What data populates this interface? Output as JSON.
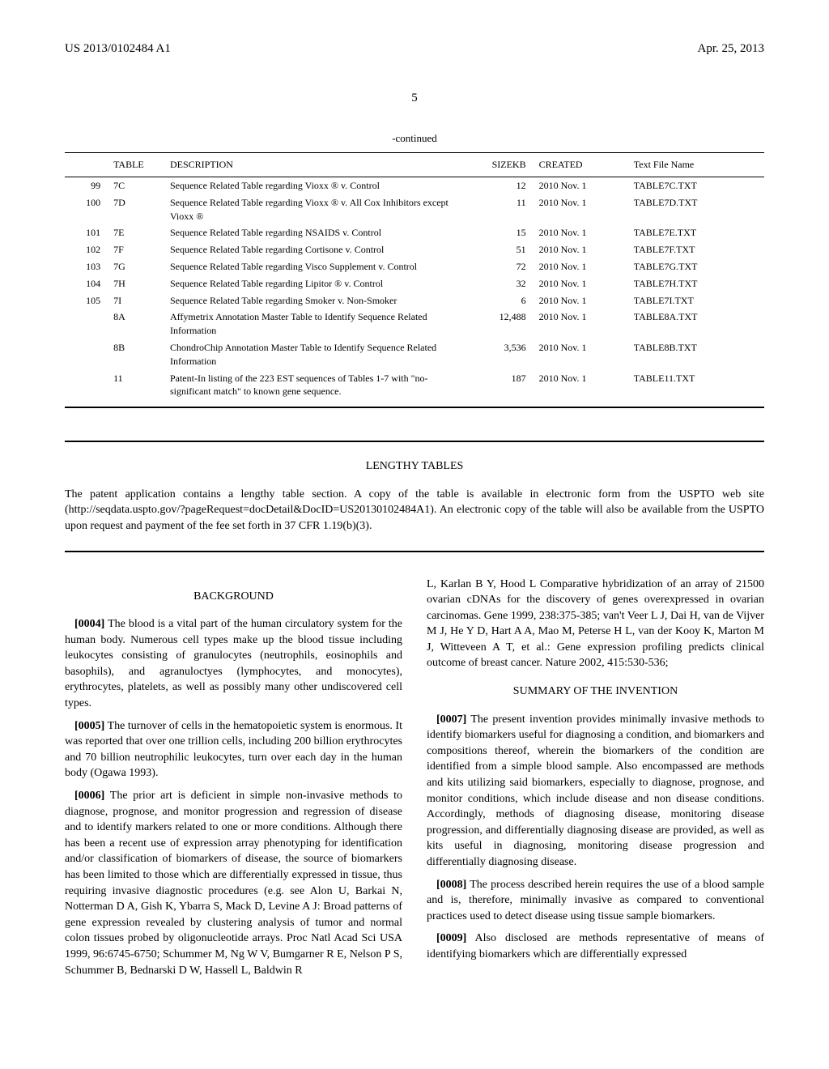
{
  "header": {
    "patent_number": "US 2013/0102484 A1",
    "date": "Apr. 25, 2013"
  },
  "page_number": "5",
  "table": {
    "continued_label": "-continued",
    "columns": [
      "",
      "TABLE",
      "DESCRIPTION",
      "SIZEKB",
      "CREATED",
      "Text File Name"
    ],
    "rows": [
      [
        "99",
        "7C",
        "Sequence Related Table regarding Vioxx ® v. Control",
        "12",
        "2010 Nov. 1",
        "TABLE7C.TXT"
      ],
      [
        "100",
        "7D",
        "Sequence Related Table regarding Vioxx ® v. All Cox Inhibitors except Vioxx ®",
        "11",
        "2010 Nov. 1",
        "TABLE7D.TXT"
      ],
      [
        "101",
        "7E",
        "Sequence Related Table regarding NSAIDS v. Control",
        "15",
        "2010 Nov. 1",
        "TABLE7E.TXT"
      ],
      [
        "102",
        "7F",
        "Sequence Related Table regarding Cortisone v. Control",
        "51",
        "2010 Nov. 1",
        "TABLE7F.TXT"
      ],
      [
        "103",
        "7G",
        "Sequence Related Table regarding Visco Supplement v. Control",
        "72",
        "2010 Nov. 1",
        "TABLE7G.TXT"
      ],
      [
        "104",
        "7H",
        "Sequence Related Table regarding Lipitor ® v. Control",
        "32",
        "2010 Nov. 1",
        "TABLE7H.TXT"
      ],
      [
        "105",
        "7I",
        "Sequence Related Table regarding Smoker v. Non-Smoker",
        "6",
        "2010 Nov. 1",
        "TABLE7I.TXT"
      ],
      [
        "",
        "8A",
        "Affymetrix Annotation Master Table to Identify Sequence Related Information",
        "12,488",
        "2010 Nov. 1",
        "TABLE8A.TXT"
      ],
      [
        "",
        "8B",
        "ChondroChip Annotation Master Table to Identify Sequence Related Information",
        "3,536",
        "2010 Nov. 1",
        "TABLE8B.TXT"
      ],
      [
        "",
        "11",
        "Patent-In listing of the 223 EST sequences of Tables 1-7 with \"no-significant match\" to known gene sequence.",
        "187",
        "2010 Nov. 1",
        "TABLE11.TXT"
      ]
    ],
    "col_widths": [
      "40px",
      "50px",
      "280px",
      "70px",
      "90px",
      "130px"
    ]
  },
  "lengthy_tables": {
    "title": "LENGTHY TABLES",
    "text": "The patent application contains a lengthy table section. A copy of the table is available in electronic form from the USPTO web site (http://seqdata.uspto.gov/?pageRequest=docDetail&DocID=US20130102484A1). An electronic copy of the table will also be available from the USPTO upon request and payment of the fee set forth in 37 CFR 1.19(b)(3)."
  },
  "background": {
    "heading": "BACKGROUND",
    "paragraphs": [
      {
        "num": "[0004]",
        "text": "The blood is a vital part of the human circulatory system for the human body. Numerous cell types make up the blood tissue including leukocytes consisting of granulocytes (neutrophils, eosinophils and basophils), and agranuloctyes (lymphocytes, and monocytes), erythrocytes, platelets, as well as possibly many other undiscovered cell types."
      },
      {
        "num": "[0005]",
        "text": "The turnover of cells in the hematopoietic system is enormous. It was reported that over one trillion cells, including 200 billion erythrocytes and 70 billion neutrophilic leukocytes, turn over each day in the human body (Ogawa 1993)."
      },
      {
        "num": "[0006]",
        "text": "The prior art is deficient in simple non-invasive methods to diagnose, prognose, and monitor progression and regression of disease and to identify markers related to one or more conditions. Although there has been a recent use of expression array phenotyping for identification and/or classification of biomarkers of disease, the source of biomarkers has been limited to those which are differentially expressed in tissue, thus requiring invasive diagnostic procedures (e.g. see Alon U, Barkai N, Notterman D A, Gish K, Ybarra S, Mack D, Levine A J: Broad patterns of gene expression revealed by clustering analysis of tumor and normal colon tissues probed by oligonucleotide arrays. Proc Natl Acad Sci USA 1999, 96:6745-6750; Schummer M, Ng W V, Bumgarner R E, Nelson P S, Schummer B, Bednarski D W, Hassell L, Baldwin R"
      }
    ]
  },
  "col2_continuation": "L, Karlan B Y, Hood L Comparative hybridization of an array of 21500 ovarian cDNAs for the discovery of genes overexpressed in ovarian carcinomas. Gene 1999, 238:375-385; van't Veer L J, Dai H, van de Vijver M J, He Y D, Hart A A, Mao M, Peterse H L, van der Kooy K, Marton M J, Witteveen A T, et al.: Gene expression profiling predicts clinical outcome of breast cancer. Nature 2002, 415:530-536;",
  "summary": {
    "heading": "SUMMARY OF THE INVENTION",
    "paragraphs": [
      {
        "num": "[0007]",
        "text": "The present invention provides minimally invasive methods to identify biomarkers useful for diagnosing a condition, and biomarkers and compositions thereof, wherein the biomarkers of the condition are identified from a simple blood sample. Also encompassed are methods and kits utilizing said biomarkers, especially to diagnose, prognose, and monitor conditions, which include disease and non disease conditions. Accordingly, methods of diagnosing disease, monitoring disease progression, and differentially diagnosing disease are provided, as well as kits useful in diagnosing, monitoring disease progression and differentially diagnosing disease."
      },
      {
        "num": "[0008]",
        "text": "The process described herein requires the use of a blood sample and is, therefore, minimally invasive as compared to conventional practices used to detect disease using tissue sample biomarkers."
      },
      {
        "num": "[0009]",
        "text": "Also disclosed are methods representative of means of identifying biomarkers which are differentially expressed"
      }
    ]
  }
}
